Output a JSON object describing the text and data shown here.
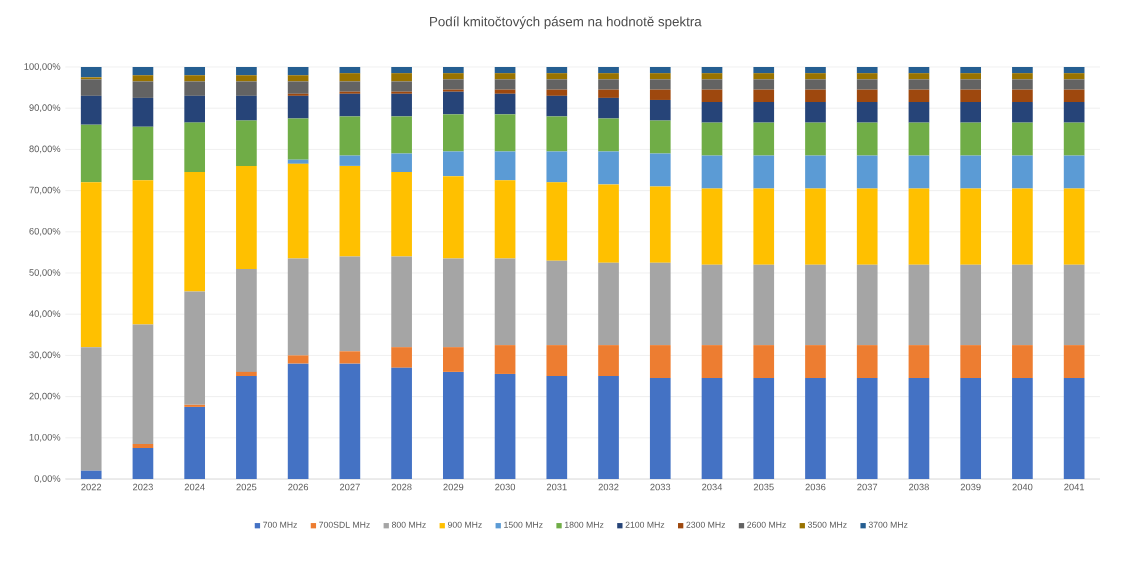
{
  "chart_data": {
    "type": "bar",
    "stacked": true,
    "title": "Podíl kmitočtových pásem na hodnotě spektra",
    "categories": [
      "2022",
      "2023",
      "2024",
      "2025",
      "2026",
      "2027",
      "2028",
      "2029",
      "2030",
      "2031",
      "2032",
      "2033",
      "2034",
      "2035",
      "2036",
      "2037",
      "2038",
      "2039",
      "2040",
      "2041"
    ],
    "ylim": [
      0,
      100
    ],
    "yticks": [
      {
        "value": 0,
        "label": "0,00%"
      },
      {
        "value": 10,
        "label": "10,00%"
      },
      {
        "value": 20,
        "label": "20,00%"
      },
      {
        "value": 30,
        "label": "30,00%"
      },
      {
        "value": 40,
        "label": "40,00%"
      },
      {
        "value": 50,
        "label": "50,00%"
      },
      {
        "value": 60,
        "label": "60,00%"
      },
      {
        "value": 70,
        "label": "70,00%"
      },
      {
        "value": 80,
        "label": "80,00%"
      },
      {
        "value": 90,
        "label": "90,00%"
      },
      {
        "value": 100,
        "label": "100,00%"
      }
    ],
    "grid": "y",
    "legend": "bottom",
    "series": [
      {
        "name": "700 MHz",
        "color": "#4472c4",
        "values": [
          2,
          7.5,
          17.5,
          25,
          28,
          28,
          27,
          26,
          25.5,
          25,
          25,
          24.5,
          24.5,
          24.5,
          24.5,
          24.5,
          24.5,
          24.5,
          24.5,
          24.5
        ]
      },
      {
        "name": "700SDL MHz",
        "color": "#ed7d31",
        "values": [
          0,
          1,
          0.5,
          1,
          2,
          3,
          5,
          6,
          7,
          7.5,
          7.5,
          8,
          8,
          8,
          8,
          8,
          8,
          8,
          8,
          8
        ]
      },
      {
        "name": "800 MHz",
        "color": "#a5a5a5",
        "values": [
          30,
          29,
          27.5,
          25,
          23.5,
          23,
          22,
          21.5,
          21,
          20.5,
          20,
          20,
          19.5,
          19.5,
          19.5,
          19.5,
          19.5,
          19.5,
          19.5,
          19.5
        ]
      },
      {
        "name": "900 MHz",
        "color": "#ffc000",
        "values": [
          40,
          35,
          29,
          25,
          23,
          22,
          20.5,
          20,
          19,
          19,
          19,
          18.5,
          18.5,
          18.5,
          18.5,
          18.5,
          18.5,
          18.5,
          18.5,
          18.5
        ]
      },
      {
        "name": "1500 MHz",
        "color": "#5b9bd5",
        "values": [
          0,
          0,
          0,
          0,
          1,
          2.5,
          4.5,
          6,
          7,
          7.5,
          8,
          8,
          8,
          8,
          8,
          8,
          8,
          8,
          8,
          8
        ]
      },
      {
        "name": "1800 MHz",
        "color": "#70ad47",
        "values": [
          14,
          13,
          12,
          11,
          10,
          9.5,
          9,
          9,
          9,
          8.5,
          8,
          8,
          8,
          8,
          8,
          8,
          8,
          8,
          8,
          8
        ]
      },
      {
        "name": "2100 MHz",
        "color": "#264478",
        "values": [
          7,
          7,
          6.5,
          6,
          5.5,
          5.5,
          5.5,
          5.5,
          5,
          5,
          5,
          5,
          5,
          5,
          5,
          5,
          5,
          5,
          5,
          5
        ]
      },
      {
        "name": "2300 MHz",
        "color": "#9e480e",
        "values": [
          0,
          0,
          0,
          0,
          0.5,
          0.5,
          0.5,
          0.5,
          1,
          1.5,
          2,
          2.5,
          3,
          3,
          3,
          3,
          3,
          3,
          3,
          3
        ]
      },
      {
        "name": "2600 MHz",
        "color": "#636363",
        "values": [
          4,
          4,
          3.5,
          3.5,
          3,
          2.5,
          2.5,
          2.5,
          2.5,
          2.5,
          2.5,
          2.5,
          2.5,
          2.5,
          2.5,
          2.5,
          2.5,
          2.5,
          2.5,
          2.5
        ]
      },
      {
        "name": "3500 MHz",
        "color": "#997300",
        "values": [
          0.5,
          1.5,
          1.5,
          1.5,
          1.5,
          2,
          2,
          1.5,
          1.5,
          1.5,
          1.5,
          1.5,
          1.5,
          1.5,
          1.5,
          1.5,
          1.5,
          1.5,
          1.5,
          1.5
        ]
      },
      {
        "name": "3700 MHz",
        "color": "#255e91",
        "values": [
          2.5,
          2,
          2,
          2,
          2,
          1.5,
          1.5,
          1.5,
          1.5,
          1.5,
          1.5,
          1.5,
          1.5,
          1.5,
          1.5,
          1.5,
          1.5,
          1.5,
          1.5,
          1.5
        ]
      }
    ]
  }
}
